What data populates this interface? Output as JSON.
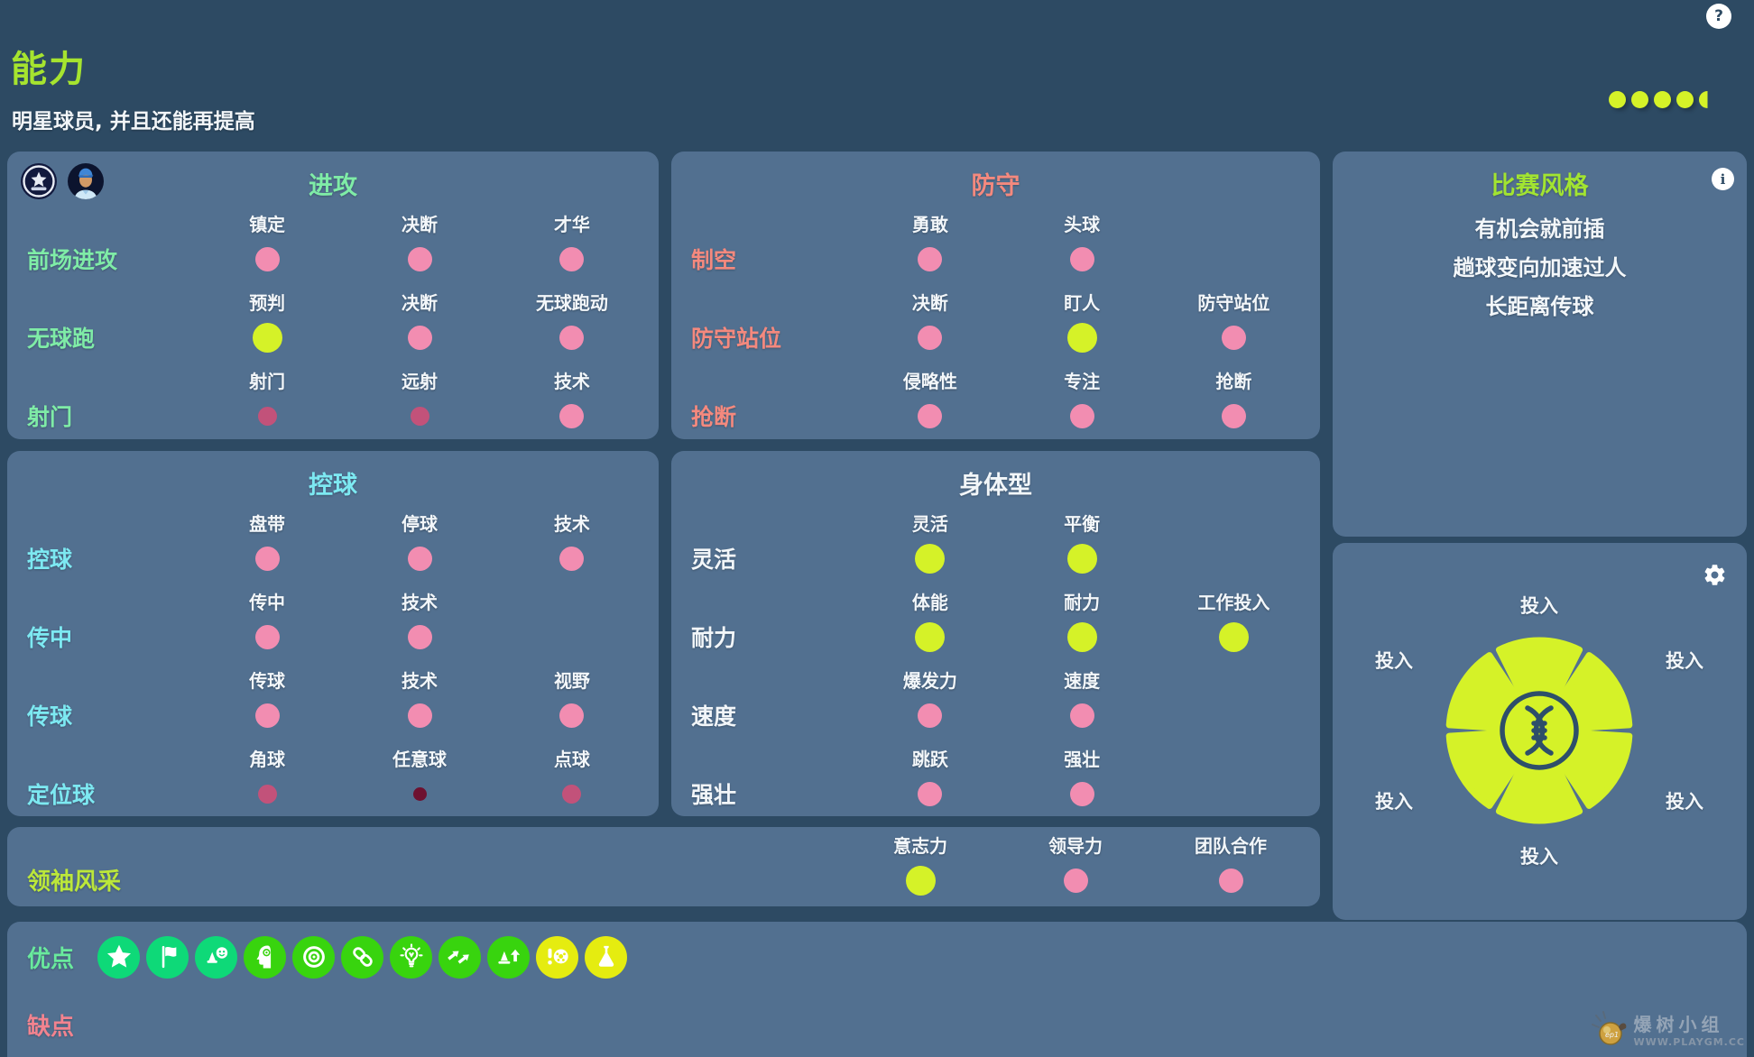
{
  "page": {
    "background": "#2d4a63",
    "panel_background": "#527090"
  },
  "header": {
    "title": "能力",
    "subtitle": "明星球员, 并且还能再提高",
    "help_icon": "?",
    "rating": {
      "full_dots": 4,
      "half_dots": 1,
      "dot_color": "#d5f228"
    }
  },
  "levels": {
    "excellent": {
      "color": "#d5f228",
      "size": 33
    },
    "good": {
      "color": "#f28db1",
      "size": 27
    },
    "average": {
      "color": "#c2527a",
      "size": 21
    },
    "poor": {
      "color": "#6e1130",
      "size": 15
    }
  },
  "stat_panels": [
    {
      "id": "attack",
      "title": "进攻",
      "accent": "#7feca7",
      "corner_icons": [
        "club-badge-icon",
        "player-avatar-icon"
      ],
      "rows": [
        {
          "label": "前场进攻",
          "attrs": [
            {
              "name": "镇定",
              "level": "good"
            },
            {
              "name": "决断",
              "level": "good"
            },
            {
              "name": "才华",
              "level": "good"
            }
          ]
        },
        {
          "label": "无球跑",
          "attrs": [
            {
              "name": "预判",
              "level": "excellent"
            },
            {
              "name": "决断",
              "level": "good"
            },
            {
              "name": "无球跑动",
              "level": "good"
            }
          ]
        },
        {
          "label": "射门",
          "attrs": [
            {
              "name": "射门",
              "level": "average"
            },
            {
              "name": "远射",
              "level": "average"
            },
            {
              "name": "技术",
              "level": "good"
            }
          ]
        }
      ]
    },
    {
      "id": "defense",
      "title": "防守",
      "accent": "#f4897e",
      "corner_icons": [],
      "rows": [
        {
          "label": "制空",
          "attrs": [
            {
              "name": "勇敢",
              "level": "good"
            },
            {
              "name": "头球",
              "level": "good"
            }
          ]
        },
        {
          "label": "防守站位",
          "attrs": [
            {
              "name": "决断",
              "level": "good"
            },
            {
              "name": "盯人",
              "level": "excellent"
            },
            {
              "name": "防守站位",
              "level": "good"
            }
          ]
        },
        {
          "label": "抢断",
          "attrs": [
            {
              "name": "侵略性",
              "level": "good"
            },
            {
              "name": "专注",
              "level": "good"
            },
            {
              "name": "抢断",
              "level": "good"
            }
          ]
        }
      ]
    },
    {
      "id": "control",
      "title": "控球",
      "accent": "#7de9f2",
      "corner_icons": [],
      "rows": [
        {
          "label": "控球",
          "attrs": [
            {
              "name": "盘带",
              "level": "good"
            },
            {
              "name": "停球",
              "level": "good"
            },
            {
              "name": "技术",
              "level": "good"
            }
          ]
        },
        {
          "label": "传中",
          "attrs": [
            {
              "name": "传中",
              "level": "good"
            },
            {
              "name": "技术",
              "level": "good"
            }
          ]
        },
        {
          "label": "传球",
          "attrs": [
            {
              "name": "传球",
              "level": "good"
            },
            {
              "name": "技术",
              "level": "good"
            },
            {
              "name": "视野",
              "level": "good"
            }
          ]
        },
        {
          "label": "定位球",
          "attrs": [
            {
              "name": "角球",
              "level": "average"
            },
            {
              "name": "任意球",
              "level": "poor"
            },
            {
              "name": "点球",
              "level": "average"
            }
          ]
        }
      ]
    },
    {
      "id": "physical",
      "title": "身体型",
      "accent": "#f2f6f9",
      "corner_icons": [],
      "rows": [
        {
          "label": "灵活",
          "attrs": [
            {
              "name": "灵活",
              "level": "excellent"
            },
            {
              "name": "平衡",
              "level": "excellent"
            }
          ]
        },
        {
          "label": "耐力",
          "attrs": [
            {
              "name": "体能",
              "level": "excellent"
            },
            {
              "name": "耐力",
              "level": "excellent"
            },
            {
              "name": "工作投入",
              "level": "excellent"
            }
          ]
        },
        {
          "label": "速度",
          "attrs": [
            {
              "name": "爆发力",
              "level": "good"
            },
            {
              "name": "速度",
              "level": "good"
            }
          ]
        },
        {
          "label": "强壮",
          "attrs": [
            {
              "name": "跳跃",
              "level": "good"
            },
            {
              "name": "强壮",
              "level": "good"
            }
          ]
        }
      ]
    }
  ],
  "play_style": {
    "title": "比赛风格",
    "accent": "#a2e431",
    "info_icon": "i",
    "items": [
      "有机会就前插",
      "趟球变向加速过人",
      "长距离传球"
    ]
  },
  "dna_wheel": {
    "segment_count": 6,
    "segment_color": "#d5f228",
    "ring_color": "#2e4f6a",
    "labels": [
      "投入",
      "投入",
      "投入",
      "投入",
      "投入",
      "投入"
    ],
    "center_icon": "dna-icon",
    "settings_icon": "gear-icon"
  },
  "leadership": {
    "label": "领袖风采",
    "accent": "#bce73a",
    "attrs": [
      {
        "name": "意志力",
        "level": "excellent"
      },
      {
        "name": "领导力",
        "level": "good"
      },
      {
        "name": "团队合作",
        "level": "good"
      }
    ]
  },
  "strengths": {
    "label": "优点",
    "accent": "#69ea9d",
    "badges": [
      {
        "icon": "star-icon",
        "color": "#0ed978"
      },
      {
        "icon": "flag-icon",
        "color": "#0ed978"
      },
      {
        "icon": "cone-smiley-icon",
        "color": "#0ed978"
      },
      {
        "icon": "head-focus-icon",
        "color": "#38d40e"
      },
      {
        "icon": "bullseye-icon",
        "color": "#38d40e"
      },
      {
        "icon": "chain-icon",
        "color": "#38d40e"
      },
      {
        "icon": "lightbulb-icon",
        "color": "#38d40e"
      },
      {
        "icon": "double-arrow-icon",
        "color": "#38d40e"
      },
      {
        "icon": "cone-arrow-icon",
        "color": "#38d40e"
      },
      {
        "icon": "ball-alert-icon",
        "color": "#e5ec10"
      },
      {
        "icon": "flask-icon",
        "color": "#e5ec10"
      }
    ]
  },
  "weaknesses": {
    "label": "缺点",
    "accent": "#f2838f",
    "badges": []
  },
  "watermark": {
    "name": "爆树小组",
    "url": "WWW.PLAYGM.CC"
  }
}
